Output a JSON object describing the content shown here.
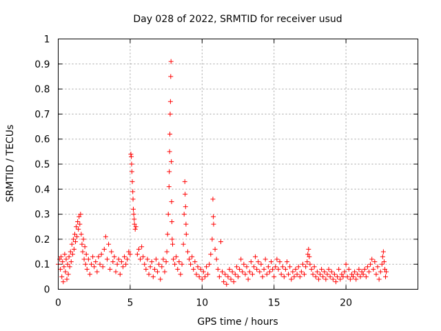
{
  "chart_data": {
    "type": "scatter",
    "title": "Day 028 of 2022, SRMTID for receiver usud",
    "xlabel": "GPS time / hours",
    "ylabel": "SRMTID / TECUs",
    "xlim": [
      0,
      25
    ],
    "ylim": [
      0,
      1
    ],
    "xticks": [
      0,
      5,
      10,
      15,
      20
    ],
    "xtick_labels": [
      "0",
      "5",
      "10",
      "15",
      "20"
    ],
    "yticks": [
      0,
      0.1,
      0.2,
      0.3,
      0.4,
      0.5,
      0.6,
      0.7,
      0.8,
      0.9,
      1
    ],
    "ytick_labels": [
      "0",
      "0.1",
      "0.2",
      "0.3",
      "0.4",
      "0.5",
      "0.6",
      "0.7",
      "0.8",
      "0.9",
      "1"
    ],
    "grid": true,
    "marker": "+",
    "color": "#ff0000",
    "series": [
      {
        "name": "SRMTID",
        "points": [
          [
            0.0,
            0.1
          ],
          [
            0.1,
            0.12
          ],
          [
            0.15,
            0.08
          ],
          [
            0.2,
            0.13
          ],
          [
            0.25,
            0.05
          ],
          [
            0.3,
            0.11
          ],
          [
            0.35,
            0.03
          ],
          [
            0.4,
            0.09
          ],
          [
            0.45,
            0.14
          ],
          [
            0.5,
            0.07
          ],
          [
            0.55,
            0.12
          ],
          [
            0.6,
            0.04
          ],
          [
            0.65,
            0.1
          ],
          [
            0.7,
            0.06
          ],
          [
            0.75,
            0.13
          ],
          [
            0.8,
            0.09
          ],
          [
            0.85,
            0.15
          ],
          [
            0.9,
            0.11
          ],
          [
            0.95,
            0.18
          ],
          [
            1.0,
            0.14
          ],
          [
            1.05,
            0.2
          ],
          [
            1.1,
            0.16
          ],
          [
            1.15,
            0.22
          ],
          [
            1.2,
            0.19
          ],
          [
            1.25,
            0.25
          ],
          [
            1.3,
            0.21
          ],
          [
            1.35,
            0.27
          ],
          [
            1.4,
            0.24
          ],
          [
            1.45,
            0.29
          ],
          [
            1.5,
            0.26
          ],
          [
            1.55,
            0.3
          ],
          [
            1.6,
            0.22
          ],
          [
            1.65,
            0.18
          ],
          [
            1.7,
            0.15
          ],
          [
            1.75,
            0.2
          ],
          [
            1.8,
            0.12
          ],
          [
            1.85,
            0.17
          ],
          [
            1.9,
            0.1
          ],
          [
            1.95,
            0.14
          ],
          [
            2.0,
            0.08
          ],
          [
            2.1,
            0.12
          ],
          [
            2.2,
            0.06
          ],
          [
            2.3,
            0.1
          ],
          [
            2.4,
            0.13
          ],
          [
            2.5,
            0.09
          ],
          [
            2.6,
            0.11
          ],
          [
            2.7,
            0.07
          ],
          [
            2.8,
            0.13
          ],
          [
            2.9,
            0.1
          ],
          [
            3.0,
            0.14
          ],
          [
            3.1,
            0.09
          ],
          [
            3.2,
            0.16
          ],
          [
            3.3,
            0.21
          ],
          [
            3.4,
            0.12
          ],
          [
            3.5,
            0.18
          ],
          [
            3.6,
            0.08
          ],
          [
            3.7,
            0.15
          ],
          [
            3.8,
            0.11
          ],
          [
            3.9,
            0.13
          ],
          [
            4.0,
            0.07
          ],
          [
            4.1,
            0.1
          ],
          [
            4.2,
            0.12
          ],
          [
            4.3,
            0.06
          ],
          [
            4.4,
            0.11
          ],
          [
            4.5,
            0.09
          ],
          [
            4.6,
            0.13
          ],
          [
            4.7,
            0.1
          ],
          [
            4.8,
            0.12
          ],
          [
            4.9,
            0.15
          ],
          [
            5.0,
            0.14
          ],
          [
            5.05,
            0.54
          ],
          [
            5.08,
            0.53
          ],
          [
            5.1,
            0.5
          ],
          [
            5.12,
            0.47
          ],
          [
            5.15,
            0.43
          ],
          [
            5.18,
            0.39
          ],
          [
            5.2,
            0.36
          ],
          [
            5.22,
            0.32
          ],
          [
            5.25,
            0.3
          ],
          [
            5.28,
            0.28
          ],
          [
            5.3,
            0.26
          ],
          [
            5.35,
            0.24
          ],
          [
            5.4,
            0.25
          ],
          [
            5.5,
            0.14
          ],
          [
            5.6,
            0.16
          ],
          [
            5.7,
            0.12
          ],
          [
            5.8,
            0.17
          ],
          [
            5.9,
            0.13
          ],
          [
            6.0,
            0.1
          ],
          [
            6.1,
            0.08
          ],
          [
            6.2,
            0.12
          ],
          [
            6.3,
            0.06
          ],
          [
            6.4,
            0.09
          ],
          [
            6.5,
            0.11
          ],
          [
            6.6,
            0.05
          ],
          [
            6.7,
            0.08
          ],
          [
            6.8,
            0.12
          ],
          [
            6.9,
            0.07
          ],
          [
            7.0,
            0.1
          ],
          [
            7.1,
            0.04
          ],
          [
            7.2,
            0.09
          ],
          [
            7.3,
            0.12
          ],
          [
            7.4,
            0.07
          ],
          [
            7.5,
            0.11
          ],
          [
            7.55,
            0.15
          ],
          [
            7.6,
            0.22
          ],
          [
            7.65,
            0.3
          ],
          [
            7.7,
            0.41
          ],
          [
            7.72,
            0.47
          ],
          [
            7.74,
            0.55
          ],
          [
            7.76,
            0.62
          ],
          [
            7.78,
            0.7
          ],
          [
            7.8,
            0.75
          ],
          [
            7.82,
            0.85
          ],
          [
            7.84,
            0.91
          ],
          [
            7.86,
            0.51
          ],
          [
            7.88,
            0.35
          ],
          [
            7.9,
            0.27
          ],
          [
            7.92,
            0.2
          ],
          [
            7.95,
            0.18
          ],
          [
            8.0,
            0.12
          ],
          [
            8.1,
            0.1
          ],
          [
            8.2,
            0.13
          ],
          [
            8.3,
            0.08
          ],
          [
            8.4,
            0.11
          ],
          [
            8.5,
            0.06
          ],
          [
            8.6,
            0.1
          ],
          [
            8.7,
            0.18
          ],
          [
            8.75,
            0.3
          ],
          [
            8.8,
            0.43
          ],
          [
            8.82,
            0.38
          ],
          [
            8.85,
            0.33
          ],
          [
            8.88,
            0.26
          ],
          [
            8.9,
            0.22
          ],
          [
            9.0,
            0.15
          ],
          [
            9.1,
            0.12
          ],
          [
            9.2,
            0.1
          ],
          [
            9.3,
            0.13
          ],
          [
            9.4,
            0.08
          ],
          [
            9.5,
            0.11
          ],
          [
            9.6,
            0.06
          ],
          [
            9.7,
            0.09
          ],
          [
            9.8,
            0.05
          ],
          [
            9.9,
            0.08
          ],
          [
            10.0,
            0.04
          ],
          [
            10.1,
            0.07
          ],
          [
            10.2,
            0.05
          ],
          [
            10.3,
            0.09
          ],
          [
            10.4,
            0.06
          ],
          [
            10.5,
            0.1
          ],
          [
            10.6,
            0.14
          ],
          [
            10.7,
            0.2
          ],
          [
            10.75,
            0.36
          ],
          [
            10.78,
            0.29
          ],
          [
            10.8,
            0.26
          ],
          [
            10.9,
            0.16
          ],
          [
            11.0,
            0.12
          ],
          [
            11.1,
            0.08
          ],
          [
            11.2,
            0.05
          ],
          [
            11.3,
            0.19
          ],
          [
            11.4,
            0.07
          ],
          [
            11.5,
            0.03
          ],
          [
            11.6,
            0.06
          ],
          [
            11.7,
            0.02
          ],
          [
            11.8,
            0.05
          ],
          [
            11.9,
            0.08
          ],
          [
            12.0,
            0.04
          ],
          [
            12.1,
            0.07
          ],
          [
            12.2,
            0.03
          ],
          [
            12.3,
            0.06
          ],
          [
            12.4,
            0.09
          ],
          [
            12.5,
            0.05
          ],
          [
            12.6,
            0.08
          ],
          [
            12.7,
            0.12
          ],
          [
            12.8,
            0.07
          ],
          [
            12.9,
            0.1
          ],
          [
            13.0,
            0.06
          ],
          [
            13.1,
            0.09
          ],
          [
            13.2,
            0.04
          ],
          [
            13.3,
            0.07
          ],
          [
            13.4,
            0.11
          ],
          [
            13.5,
            0.06
          ],
          [
            13.6,
            0.09
          ],
          [
            13.7,
            0.13
          ],
          [
            13.8,
            0.08
          ],
          [
            13.9,
            0.11
          ],
          [
            14.0,
            0.07
          ],
          [
            14.1,
            0.1
          ],
          [
            14.2,
            0.05
          ],
          [
            14.3,
            0.08
          ],
          [
            14.4,
            0.12
          ],
          [
            14.5,
            0.06
          ],
          [
            14.6,
            0.09
          ],
          [
            14.7,
            0.07
          ],
          [
            14.8,
            0.11
          ],
          [
            14.9,
            0.08
          ],
          [
            15.0,
            0.05
          ],
          [
            15.1,
            0.09
          ],
          [
            15.2,
            0.12
          ],
          [
            15.3,
            0.08
          ],
          [
            15.4,
            0.11
          ],
          [
            15.5,
            0.06
          ],
          [
            15.6,
            0.09
          ],
          [
            15.7,
            0.05
          ],
          [
            15.8,
            0.08
          ],
          [
            15.9,
            0.11
          ],
          [
            16.0,
            0.06
          ],
          [
            16.1,
            0.09
          ],
          [
            16.2,
            0.04
          ],
          [
            16.3,
            0.07
          ],
          [
            16.4,
            0.05
          ],
          [
            16.5,
            0.08
          ],
          [
            16.6,
            0.06
          ],
          [
            16.7,
            0.09
          ],
          [
            16.8,
            0.05
          ],
          [
            16.9,
            0.07
          ],
          [
            17.0,
            0.1
          ],
          [
            17.1,
            0.06
          ],
          [
            17.2,
            0.09
          ],
          [
            17.3,
            0.11
          ],
          [
            17.35,
            0.14
          ],
          [
            17.4,
            0.16
          ],
          [
            17.45,
            0.13
          ],
          [
            17.5,
            0.1
          ],
          [
            17.6,
            0.08
          ],
          [
            17.7,
            0.06
          ],
          [
            17.8,
            0.09
          ],
          [
            17.9,
            0.05
          ],
          [
            18.0,
            0.07
          ],
          [
            18.1,
            0.04
          ],
          [
            18.2,
            0.06
          ],
          [
            18.3,
            0.08
          ],
          [
            18.4,
            0.05
          ],
          [
            18.5,
            0.07
          ],
          [
            18.6,
            0.04
          ],
          [
            18.7,
            0.06
          ],
          [
            18.8,
            0.08
          ],
          [
            18.9,
            0.05
          ],
          [
            19.0,
            0.07
          ],
          [
            19.1,
            0.04
          ],
          [
            19.2,
            0.06
          ],
          [
            19.3,
            0.03
          ],
          [
            19.4,
            0.05
          ],
          [
            19.5,
            0.08
          ],
          [
            19.6,
            0.04
          ],
          [
            19.7,
            0.06
          ],
          [
            19.8,
            0.05
          ],
          [
            19.9,
            0.07
          ],
          [
            20.0,
            0.1
          ],
          [
            20.1,
            0.05
          ],
          [
            20.2,
            0.08
          ],
          [
            20.3,
            0.04
          ],
          [
            20.4,
            0.06
          ],
          [
            20.5,
            0.05
          ],
          [
            20.6,
            0.07
          ],
          [
            20.7,
            0.04
          ],
          [
            20.8,
            0.06
          ],
          [
            20.9,
            0.08
          ],
          [
            21.0,
            0.05
          ],
          [
            21.1,
            0.07
          ],
          [
            21.2,
            0.06
          ],
          [
            21.3,
            0.08
          ],
          [
            21.4,
            0.05
          ],
          [
            21.5,
            0.09
          ],
          [
            21.6,
            0.07
          ],
          [
            21.7,
            0.1
          ],
          [
            21.8,
            0.12
          ],
          [
            21.9,
            0.08
          ],
          [
            22.0,
            0.11
          ],
          [
            22.1,
            0.06
          ],
          [
            22.2,
            0.09
          ],
          [
            22.3,
            0.04
          ],
          [
            22.4,
            0.07
          ],
          [
            22.5,
            0.1
          ],
          [
            22.55,
            0.13
          ],
          [
            22.6,
            0.15
          ],
          [
            22.65,
            0.11
          ],
          [
            22.7,
            0.08
          ],
          [
            22.75,
            0.05
          ],
          [
            22.8,
            0.07
          ]
        ]
      }
    ]
  }
}
